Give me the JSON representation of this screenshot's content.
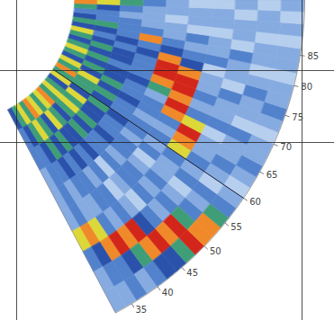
{
  "chart_data": {
    "type": "sector_heatmap",
    "bearing_lim": [
      32,
      94
    ],
    "bearing_ticks": [
      35,
      40,
      45,
      50,
      55,
      60,
      65,
      70,
      75,
      80,
      85
    ],
    "range_lim": [
      0,
      1
    ],
    "bearing_lines": [
      60
    ],
    "clim": [
      0,
      9
    ],
    "cells": {
      "bearing_edges": [
        32,
        34,
        36,
        38,
        40,
        42,
        44,
        46,
        48,
        50,
        52,
        54,
        56,
        58,
        60,
        62,
        64,
        66,
        68,
        70,
        72,
        74,
        76,
        78,
        80,
        82,
        84,
        86,
        88,
        90,
        92,
        94
      ],
      "range_edges": [
        0,
        0.1,
        0.2,
        0.3,
        0.4,
        0.5,
        0.6,
        0.7,
        0.8,
        0.9,
        1
      ],
      "values": [
        [
          5,
          6,
          7,
          6,
          8,
          7,
          6,
          7,
          8,
          6,
          7,
          6,
          5,
          7,
          6,
          8,
          6,
          7,
          5,
          6,
          7,
          6,
          5,
          6,
          7,
          5,
          6,
          5,
          4,
          6,
          8
        ],
        [
          4,
          5,
          6,
          7,
          6,
          5,
          7,
          6,
          5,
          6,
          7,
          6,
          7,
          5,
          6,
          6,
          7,
          5,
          6,
          5,
          6,
          5,
          6,
          5,
          4,
          5,
          6,
          4,
          4,
          5,
          7
        ],
        [
          4,
          4,
          5,
          6,
          5,
          6,
          5,
          5,
          6,
          5,
          6,
          5,
          5,
          6,
          5,
          6,
          5,
          6,
          5,
          5,
          4,
          5,
          5,
          4,
          5,
          4,
          4,
          4,
          3,
          4,
          6
        ],
        [
          3,
          4,
          4,
          5,
          4,
          5,
          4,
          5,
          4,
          4,
          5,
          4,
          4,
          5,
          4,
          4,
          5,
          4,
          4,
          5,
          4,
          4,
          4,
          5,
          4,
          8,
          4,
          3,
          3,
          3,
          4
        ],
        [
          3,
          4,
          3,
          4,
          4,
          3,
          4,
          2,
          4,
          3,
          4,
          4,
          3,
          4,
          4,
          3,
          4,
          4,
          3,
          6,
          8,
          9,
          9,
          8,
          5,
          4,
          3,
          3,
          2,
          3,
          3
        ],
        [
          3,
          4,
          3,
          3,
          4,
          4,
          2,
          3,
          4,
          4,
          3,
          2,
          4,
          3,
          4,
          3,
          4,
          8,
          9,
          8,
          9,
          9,
          8,
          5,
          4,
          3,
          4,
          2,
          3,
          3,
          2
        ],
        [
          7,
          8,
          7,
          4,
          3,
          4,
          3,
          2,
          4,
          3,
          4,
          3,
          3,
          4,
          7,
          8,
          9,
          7,
          4,
          3,
          4,
          3,
          3,
          2,
          4,
          3,
          3,
          2,
          3,
          3,
          2
        ],
        [
          4,
          5,
          8,
          9,
          8,
          9,
          5,
          4,
          3,
          4,
          3,
          2,
          4,
          3,
          4,
          3,
          3,
          2,
          4,
          3,
          3,
          4,
          2,
          3,
          3,
          4,
          2,
          3,
          3,
          2,
          3
        ],
        [
          3,
          4,
          4,
          5,
          6,
          8,
          9,
          8,
          9,
          6,
          4,
          3,
          4,
          2,
          3,
          4,
          3,
          3,
          4,
          2,
          3,
          3,
          4,
          3,
          2,
          3,
          3,
          2,
          3,
          3,
          2
        ],
        [
          3,
          3,
          4,
          3,
          4,
          5,
          5,
          6,
          9,
          8,
          8,
          6,
          4,
          3,
          2,
          3,
          4,
          3,
          3,
          2,
          3,
          4,
          3,
          3,
          2,
          3,
          3,
          2,
          3,
          2,
          3
        ]
      ]
    }
  }
}
